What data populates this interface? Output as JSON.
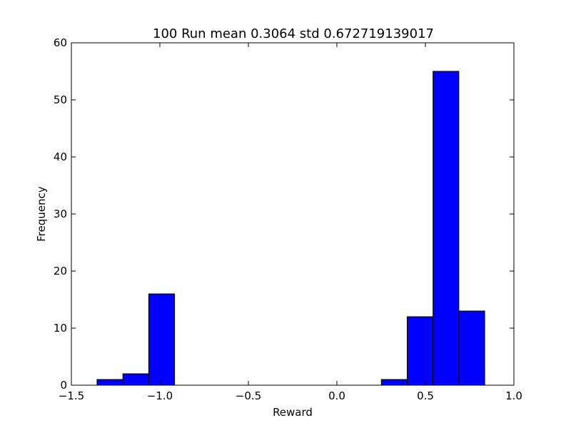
{
  "chart_data": {
    "type": "bar",
    "title": "100 Run mean 0.3064 std 0.672719139017",
    "xlabel": "Reward",
    "ylabel": "Frequency",
    "xlim": [
      -1.5,
      1.0
    ],
    "ylim": [
      0,
      60
    ],
    "x_ticks": [
      "−1.5",
      "−1.0",
      "−0.5",
      "0.0",
      "0.5",
      "1.0"
    ],
    "x_tick_values": [
      -1.5,
      -1.0,
      -0.5,
      0.0,
      0.5,
      1.0
    ],
    "y_ticks": [
      "0",
      "10",
      "20",
      "30",
      "40",
      "50",
      "60"
    ],
    "y_tick_values": [
      0,
      10,
      20,
      30,
      40,
      50,
      60
    ],
    "bin_edges": [
      -1.355,
      -1.209,
      -1.063,
      -0.917,
      -0.771,
      -0.625,
      -0.479,
      -0.333,
      -0.187,
      -0.041,
      0.105,
      0.251,
      0.397,
      0.543,
      0.689,
      0.835
    ],
    "values": [
      1,
      2,
      16,
      0,
      0,
      0,
      0,
      0,
      0,
      0,
      0,
      1,
      12,
      55,
      13
    ],
    "bar_color": "#0000ff",
    "edge_color": "#000000",
    "grid": false,
    "legend": "none"
  }
}
